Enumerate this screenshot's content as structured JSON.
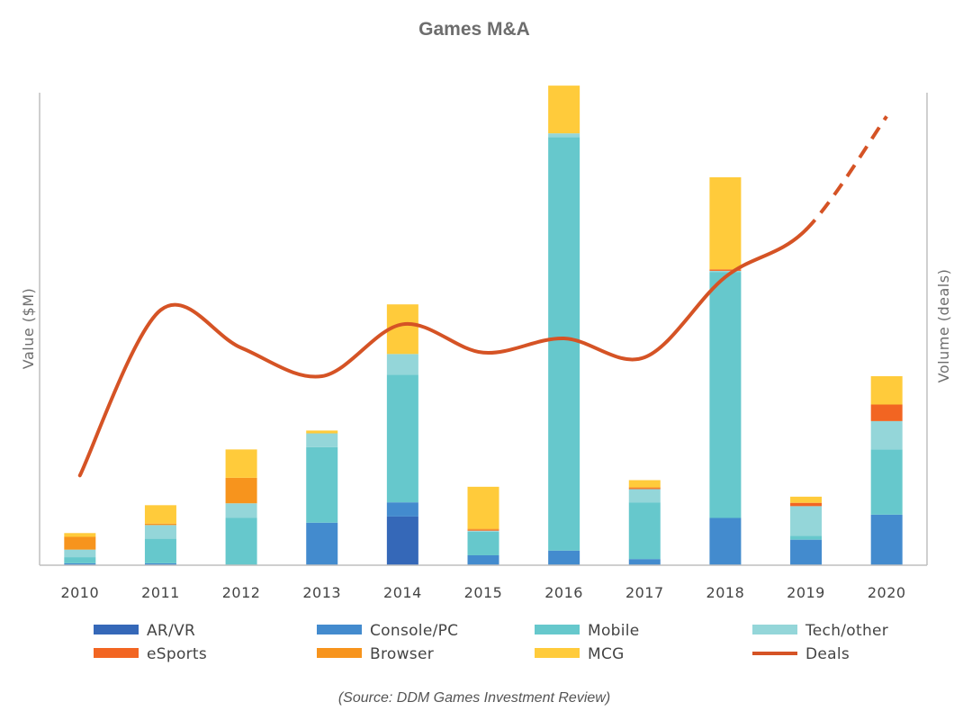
{
  "chart_data": {
    "type": "bar",
    "title": "Games M&A",
    "ylabel": "Value ($M)",
    "y2label": "Volume (deals)",
    "xlabel": "",
    "source": "(Source: DDM Games Investment Review)",
    "categories": [
      "2010",
      "2011",
      "2012",
      "2013",
      "2014",
      "2015",
      "2016",
      "2017",
      "2018",
      "2019",
      "2020"
    ],
    "y_axis_ticks_shown": false,
    "ylim": [
      0,
      100
    ],
    "y2lim": [
      0,
      100
    ],
    "grid": false,
    "legend_position": "bottom",
    "stacked": true,
    "series": [
      {
        "name": "AR/VR",
        "color": "#3568b8",
        "values": [
          0,
          0,
          0,
          0,
          10.3,
          0,
          0,
          0,
          0,
          0,
          0
        ]
      },
      {
        "name": "Console/PC",
        "color": "#438bce",
        "values": [
          0.4,
          0.4,
          0,
          9.0,
          3.0,
          2.1,
          3.1,
          1.3,
          10.0,
          5.4,
          10.7
        ]
      },
      {
        "name": "Mobile",
        "color": "#66c8cc",
        "values": [
          1.3,
          5.2,
          10.0,
          16.0,
          27.0,
          5.0,
          87.5,
          12.0,
          52.0,
          0.8,
          13.8
        ]
      },
      {
        "name": "Tech/other",
        "color": "#94d6d9",
        "values": [
          1.6,
          2.9,
          3.1,
          2.9,
          4.4,
          0.2,
          0.8,
          2.8,
          0.3,
          6.3,
          6.0
        ]
      },
      {
        "name": "eSports",
        "color": "#f26522",
        "values": [
          0,
          0,
          0,
          0,
          0,
          0.2,
          0,
          0.2,
          0.3,
          0.7,
          3.5
        ]
      },
      {
        "name": "Browser",
        "color": "#f7941d",
        "values": [
          2.7,
          0.3,
          5.4,
          0,
          0,
          0.2,
          0,
          0.2,
          0,
          0,
          0
        ]
      },
      {
        "name": "MCG",
        "color": "#ffcb3b",
        "values": [
          0.8,
          3.9,
          6.0,
          0.6,
          10.5,
          8.9,
          10.1,
          1.5,
          19.5,
          1.3,
          6.0
        ]
      }
    ],
    "line_series": {
      "name": "Deals",
      "color": "#d55325",
      "axis": "secondary",
      "values": [
        19,
        54,
        46,
        40,
        51,
        45,
        48,
        44,
        61,
        71,
        95
      ],
      "dashed_segment": [
        "2019",
        "2020"
      ]
    }
  }
}
